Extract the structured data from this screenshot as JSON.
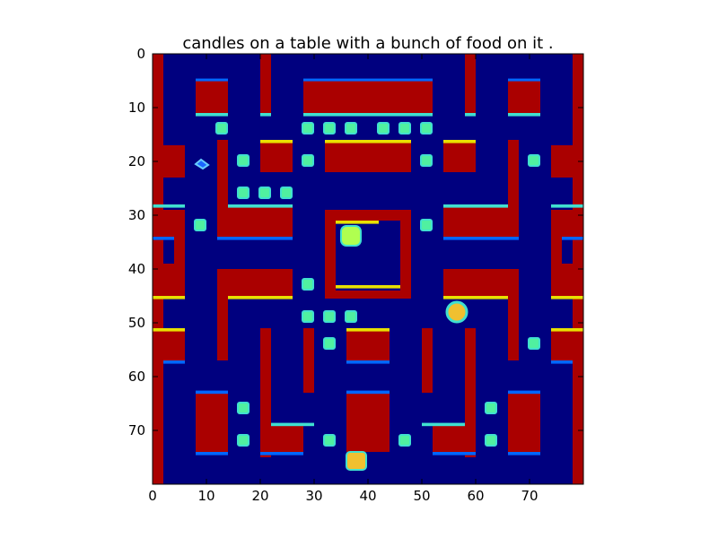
{
  "title": "candles on a table with a bunch of food on it .",
  "image_grid": {
    "width": 80,
    "height": 80,
    "x_ticks": [
      0,
      10,
      20,
      30,
      40,
      50,
      60,
      70
    ],
    "y_ticks": [
      0,
      10,
      20,
      30,
      40,
      50,
      60,
      70
    ]
  },
  "colors": {
    "background": "#00007f",
    "wall": "#aa0000",
    "wall_highlight": "#e8e000",
    "edge_cyan": "#40e0d0",
    "edge_blue": "#0066ff",
    "pellet": "#50f0a0",
    "ghost": "#b0ff50",
    "player": "#f0c030"
  },
  "icons": {
    "pellet": "pellet-icon",
    "ghost": "ghost-icon",
    "player": "player-icon",
    "sprite": "sprite-icon"
  }
}
